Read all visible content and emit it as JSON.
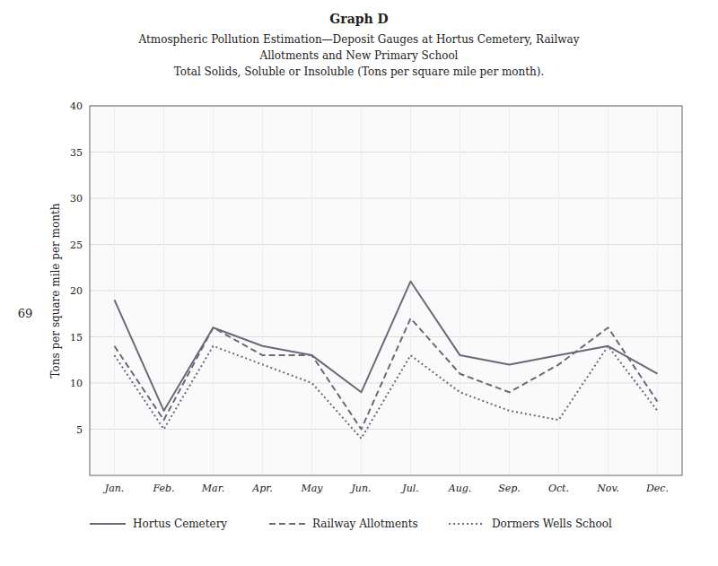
{
  "chart_data": {
    "type": "line",
    "title": "Graph D",
    "subtitle": [
      "Atmospheric Pollution Estimation—Deposit Gauges at Hortus Cemetery, Railway",
      "Allotments and New Primary School",
      "Total Solids, Soluble or Insoluble (Tons per square mile per month)."
    ],
    "annotations": [
      "69"
    ],
    "y_label": "Tons per square mile per month",
    "categories": [
      "Jan.",
      "Feb.",
      "Mar.",
      "Apr.",
      "May",
      "Jun.",
      "Jul.",
      "Aug.",
      "Sep.",
      "Oct.",
      "Nov.",
      "Dec."
    ],
    "series": [
      {
        "name": "Hortus Cemetery",
        "color": "#6a6a7a",
        "line_style": "solid",
        "values": [
          19,
          7,
          16,
          14,
          13,
          9,
          21,
          13,
          12,
          13,
          14,
          11
        ]
      },
      {
        "name": "Railway Allotments",
        "color": "#6a6a7a",
        "line_style": "dashed",
        "values": [
          14,
          6,
          16,
          13,
          13,
          5,
          17,
          11,
          9,
          12,
          16,
          8
        ]
      },
      {
        "name": "Dormers Wells School",
        "color": "#6a6a7a",
        "line_style": "dotted",
        "values": [
          13,
          5,
          14,
          12,
          10,
          4,
          13,
          9,
          7,
          6,
          14,
          7
        ]
      }
    ],
    "ylim": [
      0,
      40
    ],
    "yticks": [
      5,
      10,
      15,
      20,
      25,
      30,
      35,
      40
    ],
    "grid": true,
    "legend": "bottom"
  }
}
